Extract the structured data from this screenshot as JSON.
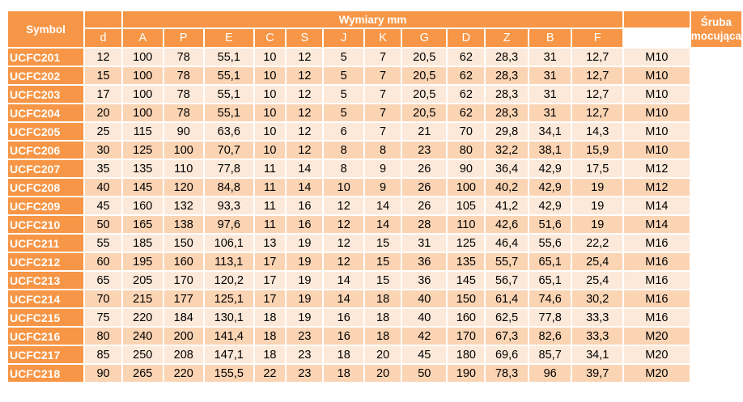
{
  "header": {
    "symbol": "Symbol",
    "dimensions": "Wymiary mm",
    "bolt_line1": "Śruba",
    "bolt_line2": "mocująca"
  },
  "columns": [
    "d",
    "A",
    "P",
    "E",
    "C",
    "S",
    "J",
    "K",
    "G",
    "D",
    "Z",
    "B",
    "F"
  ],
  "rows": [
    {
      "symbol": "UCFC201",
      "values": [
        "12",
        "100",
        "78",
        "55,1",
        "10",
        "12",
        "5",
        "7",
        "20,5",
        "62",
        "28,3",
        "31",
        "12,7"
      ],
      "bolt": "M10"
    },
    {
      "symbol": "UCFC202",
      "values": [
        "15",
        "100",
        "78",
        "55,1",
        "10",
        "12",
        "5",
        "7",
        "20,5",
        "62",
        "28,3",
        "31",
        "12,7"
      ],
      "bolt": "M10"
    },
    {
      "symbol": "UCFC203",
      "values": [
        "17",
        "100",
        "78",
        "55,1",
        "10",
        "12",
        "5",
        "7",
        "20,5",
        "62",
        "28,3",
        "31",
        "12,7"
      ],
      "bolt": "M10"
    },
    {
      "symbol": "UCFC204",
      "values": [
        "20",
        "100",
        "78",
        "55,1",
        "10",
        "12",
        "5",
        "7",
        "20,5",
        "62",
        "28,3",
        "31",
        "12,7"
      ],
      "bolt": "M10"
    },
    {
      "symbol": "UCFC205",
      "values": [
        "25",
        "115",
        "90",
        "63,6",
        "10",
        "12",
        "6",
        "7",
        "21",
        "70",
        "29,8",
        "34,1",
        "14,3"
      ],
      "bolt": "M10"
    },
    {
      "symbol": "UCFC206",
      "values": [
        "30",
        "125",
        "100",
        "70,7",
        "10",
        "12",
        "8",
        "8",
        "23",
        "80",
        "32,2",
        "38,1",
        "15,9"
      ],
      "bolt": "M10"
    },
    {
      "symbol": "UCFC207",
      "values": [
        "35",
        "135",
        "110",
        "77,8",
        "11",
        "14",
        "8",
        "9",
        "26",
        "90",
        "36,4",
        "42,9",
        "17,5"
      ],
      "bolt": "M12"
    },
    {
      "symbol": "UCFC208",
      "values": [
        "40",
        "145",
        "120",
        "84,8",
        "11",
        "14",
        "10",
        "9",
        "26",
        "100",
        "40,2",
        "42,9",
        "19"
      ],
      "bolt": "M12"
    },
    {
      "symbol": "UCFC209",
      "values": [
        "45",
        "160",
        "132",
        "93,3",
        "11",
        "16",
        "12",
        "14",
        "26",
        "105",
        "41,2",
        "42,9",
        "19"
      ],
      "bolt": "M14"
    },
    {
      "symbol": "UCFC210",
      "values": [
        "50",
        "165",
        "138",
        "97,6",
        "11",
        "16",
        "12",
        "14",
        "28",
        "110",
        "42,6",
        "51,6",
        "19"
      ],
      "bolt": "M14"
    },
    {
      "symbol": "UCFC211",
      "values": [
        "55",
        "185",
        "150",
        "106,1",
        "13",
        "19",
        "12",
        "15",
        "31",
        "125",
        "46,4",
        "55,6",
        "22,2"
      ],
      "bolt": "M16"
    },
    {
      "symbol": "UCFC212",
      "values": [
        "60",
        "195",
        "160",
        "113,1",
        "17",
        "19",
        "12",
        "15",
        "36",
        "135",
        "55,7",
        "65,1",
        "25,4"
      ],
      "bolt": "M16"
    },
    {
      "symbol": "UCFC213",
      "values": [
        "65",
        "205",
        "170",
        "120,2",
        "17",
        "19",
        "14",
        "15",
        "36",
        "145",
        "56,7",
        "65,1",
        "25,4"
      ],
      "bolt": "M16"
    },
    {
      "symbol": "UCFC214",
      "values": [
        "70",
        "215",
        "177",
        "125,1",
        "17",
        "19",
        "14",
        "18",
        "40",
        "150",
        "61,4",
        "74,6",
        "30,2"
      ],
      "bolt": "M16"
    },
    {
      "symbol": "UCFC215",
      "values": [
        "75",
        "220",
        "184",
        "130,1",
        "18",
        "19",
        "16",
        "18",
        "40",
        "160",
        "62,5",
        "77,8",
        "33,3"
      ],
      "bolt": "M16"
    },
    {
      "symbol": "UCFC216",
      "values": [
        "80",
        "240",
        "200",
        "141,4",
        "18",
        "23",
        "16",
        "18",
        "42",
        "170",
        "67,3",
        "82,6",
        "33,3"
      ],
      "bolt": "M20"
    },
    {
      "symbol": "UCFC217",
      "values": [
        "85",
        "250",
        "208",
        "147,1",
        "18",
        "23",
        "18",
        "20",
        "45",
        "180",
        "69,6",
        "85,7",
        "34,1"
      ],
      "bolt": "M20"
    },
    {
      "symbol": "UCFC218",
      "values": [
        "90",
        "265",
        "220",
        "155,5",
        "22",
        "23",
        "18",
        "20",
        "50",
        "190",
        "78,3",
        "96",
        "39,7"
      ],
      "bolt": "M20"
    }
  ],
  "colors": {
    "header_orange": "#f79646",
    "row_light": "#fde9d9",
    "row_dark": "#fbd4b4"
  }
}
